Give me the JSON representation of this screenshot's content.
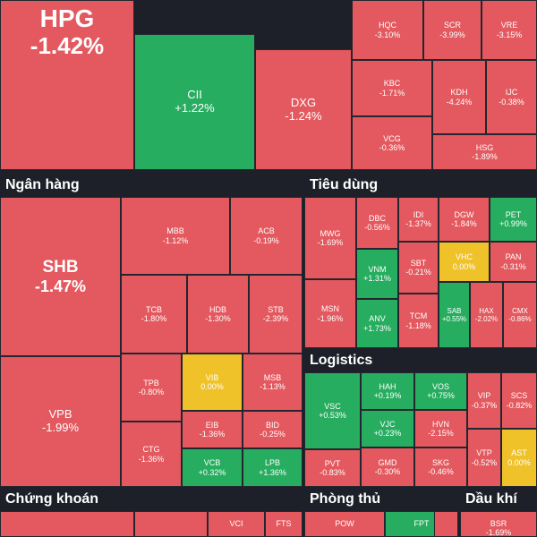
{
  "colors": {
    "down": "#e3595f",
    "up": "#27ad60",
    "flat": "#f0c229",
    "background": "#1d2028"
  },
  "sectors": [
    {
      "name": "Ngân hàng"
    },
    {
      "name": "Tiêu dùng"
    },
    {
      "name": "Logistics"
    },
    {
      "name": "Chứng khoán"
    },
    {
      "name": "Phòng thủ"
    },
    {
      "name": "Dầu khí"
    }
  ],
  "tiles": [
    {
      "sym": "HPG",
      "chg": "-1.42%",
      "dir": "down"
    },
    {
      "sym": "CII",
      "chg": "+1.22%",
      "dir": "up"
    },
    {
      "sym": "DXG",
      "chg": "-1.24%",
      "dir": "down"
    },
    {
      "sym": "HQC",
      "chg": "-3.10%",
      "dir": "down"
    },
    {
      "sym": "SCR",
      "chg": "-3.99%",
      "dir": "down"
    },
    {
      "sym": "VRE",
      "chg": "-3.15%",
      "dir": "down"
    },
    {
      "sym": "KBC",
      "chg": "-1.71%",
      "dir": "down"
    },
    {
      "sym": "KDH",
      "chg": "-4.24%",
      "dir": "down"
    },
    {
      "sym": "IJC",
      "chg": "-0.38%",
      "dir": "down"
    },
    {
      "sym": "VCG",
      "chg": "-0.36%",
      "dir": "down"
    },
    {
      "sym": "HSG",
      "chg": "-1.89%",
      "dir": "down"
    },
    {
      "sym": "SHB",
      "chg": "-1.47%",
      "dir": "down"
    },
    {
      "sym": "VPB",
      "chg": "-1.99%",
      "dir": "down"
    },
    {
      "sym": "MBB",
      "chg": "-1.12%",
      "dir": "down"
    },
    {
      "sym": "ACB",
      "chg": "-0.19%",
      "dir": "down"
    },
    {
      "sym": "TCB",
      "chg": "-1.80%",
      "dir": "down"
    },
    {
      "sym": "HDB",
      "chg": "-1.30%",
      "dir": "down"
    },
    {
      "sym": "STB",
      "chg": "-2.39%",
      "dir": "down"
    },
    {
      "sym": "TPB",
      "chg": "-0.80%",
      "dir": "down"
    },
    {
      "sym": "VIB",
      "chg": "0.00%",
      "dir": "flat"
    },
    {
      "sym": "MSB",
      "chg": "-1.13%",
      "dir": "down"
    },
    {
      "sym": "EIB",
      "chg": "-1.36%",
      "dir": "down"
    },
    {
      "sym": "BID",
      "chg": "-0.25%",
      "dir": "down"
    },
    {
      "sym": "CTG",
      "chg": "-1.36%",
      "dir": "down"
    },
    {
      "sym": "VCB",
      "chg": "+0.32%",
      "dir": "up"
    },
    {
      "sym": "LPB",
      "chg": "+1.36%",
      "dir": "up"
    },
    {
      "sym": "MWG",
      "chg": "-1.69%",
      "dir": "down"
    },
    {
      "sym": "DBC",
      "chg": "-0.56%",
      "dir": "down"
    },
    {
      "sym": "IDI",
      "chg": "-1.37%",
      "dir": "down"
    },
    {
      "sym": "DGW",
      "chg": "-1.84%",
      "dir": "down"
    },
    {
      "sym": "PET",
      "chg": "+0.99%",
      "dir": "up"
    },
    {
      "sym": "VNM",
      "chg": "+1.31%",
      "dir": "up"
    },
    {
      "sym": "SBT",
      "chg": "-0.21%",
      "dir": "down"
    },
    {
      "sym": "VHC",
      "chg": "0.00%",
      "dir": "flat"
    },
    {
      "sym": "PAN",
      "chg": "-0.31%",
      "dir": "down"
    },
    {
      "sym": "MSN",
      "chg": "-1.96%",
      "dir": "down"
    },
    {
      "sym": "ANV",
      "chg": "+1.73%",
      "dir": "up"
    },
    {
      "sym": "TCM",
      "chg": "-1.18%",
      "dir": "down"
    },
    {
      "sym": "SAB",
      "chg": "+0.55%",
      "dir": "up"
    },
    {
      "sym": "HAX",
      "chg": "-2.02%",
      "dir": "down"
    },
    {
      "sym": "CMX",
      "chg": "-0.86%",
      "dir": "down"
    },
    {
      "sym": "VSC",
      "chg": "+0.53%",
      "dir": "up"
    },
    {
      "sym": "HAH",
      "chg": "+0.19%",
      "dir": "up"
    },
    {
      "sym": "VOS",
      "chg": "+0.75%",
      "dir": "up"
    },
    {
      "sym": "VIP",
      "chg": "-0.37%",
      "dir": "down"
    },
    {
      "sym": "SCS",
      "chg": "-0.82%",
      "dir": "down"
    },
    {
      "sym": "VJC",
      "chg": "+0.23%",
      "dir": "up"
    },
    {
      "sym": "HVN",
      "chg": "-2.15%",
      "dir": "down"
    },
    {
      "sym": "VTP",
      "chg": "-0.52%",
      "dir": "down"
    },
    {
      "sym": "AST",
      "chg": "0.00%",
      "dir": "flat"
    },
    {
      "sym": "PVT",
      "chg": "-0.83%",
      "dir": "down"
    },
    {
      "sym": "GMD",
      "chg": "-0.30%",
      "dir": "down"
    },
    {
      "sym": "SKG",
      "chg": "-0.46%",
      "dir": "down"
    },
    {
      "sym": "",
      "chg": "",
      "dir": "down"
    },
    {
      "sym": "",
      "chg": "",
      "dir": "down"
    },
    {
      "sym": "VCI",
      "chg": "",
      "dir": "down"
    },
    {
      "sym": "FTS",
      "chg": "",
      "dir": "down"
    },
    {
      "sym": "POW",
      "chg": "",
      "dir": "down"
    },
    {
      "sym": "FPT",
      "chg": "",
      "dir": "up"
    },
    {
      "sym": "",
      "chg": "",
      "dir": "down"
    },
    {
      "sym": "BSR",
      "chg": "-1.69%",
      "dir": "down"
    }
  ]
}
